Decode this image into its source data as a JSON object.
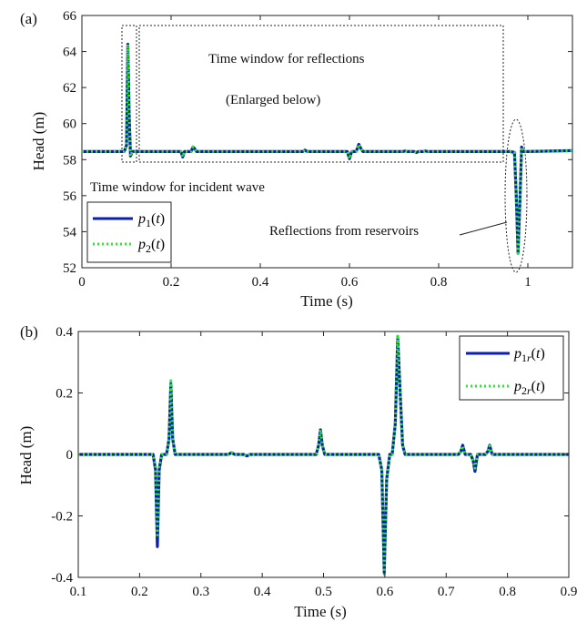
{
  "chart_data": [
    {
      "type": "line",
      "panel_label": "(a)",
      "xlabel": "Time (s)",
      "ylabel": "Head (m)",
      "xlim": [
        0,
        1.1
      ],
      "ylim": [
        52,
        66
      ],
      "xticks": [
        0,
        0.2,
        0.4,
        0.6,
        0.8,
        1
      ],
      "xtick_labels": [
        "0",
        "0.2",
        "0.4",
        "0.6",
        "0.8",
        "1"
      ],
      "yticks": [
        52,
        54,
        56,
        58,
        60,
        62,
        64,
        66
      ],
      "ytick_labels": [
        "52",
        "54",
        "56",
        "58",
        "60",
        "62",
        "64",
        "66"
      ],
      "grid": false,
      "legend_position": "bottom-left",
      "series": [
        {
          "name": "p1(t)",
          "color": "#0b1fb5",
          "style": "solid",
          "x": [
            0,
            0.095,
            0.1,
            0.103,
            0.106,
            0.109,
            0.113,
            0.2,
            0.222,
            0.226,
            0.23,
            0.245,
            0.249,
            0.253,
            0.257,
            0.35,
            0.495,
            0.5,
            0.505,
            0.595,
            0.6,
            0.605,
            0.615,
            0.621,
            0.626,
            0.63,
            0.72,
            0.725,
            0.73,
            0.745,
            0.75,
            0.755,
            0.765,
            0.77,
            0.775,
            0.96,
            0.97,
            0.974,
            0.978,
            0.982,
            0.986,
            0.99,
            1.0,
            1.1
          ],
          "y": [
            58.45,
            58.45,
            58.8,
            64.4,
            60.5,
            58.2,
            58.45,
            58.45,
            58.45,
            58.15,
            58.45,
            58.45,
            58.7,
            58.6,
            58.45,
            58.45,
            58.45,
            58.53,
            58.45,
            58.45,
            58.05,
            58.45,
            58.45,
            58.85,
            58.6,
            58.45,
            58.45,
            58.48,
            58.45,
            58.45,
            58.4,
            58.45,
            58.45,
            58.48,
            58.45,
            58.45,
            58.4,
            56.0,
            52.8,
            55.5,
            58.7,
            58.45,
            58.45,
            58.5
          ]
        },
        {
          "name": "p2(t)",
          "color": "#2ee82e",
          "style": "dotted",
          "x": [
            0,
            0.095,
            0.1,
            0.103,
            0.106,
            0.109,
            0.113,
            0.2,
            0.222,
            0.226,
            0.23,
            0.245,
            0.249,
            0.253,
            0.257,
            0.35,
            0.495,
            0.5,
            0.505,
            0.595,
            0.6,
            0.605,
            0.615,
            0.621,
            0.626,
            0.63,
            0.72,
            0.725,
            0.73,
            0.745,
            0.75,
            0.755,
            0.765,
            0.77,
            0.775,
            0.96,
            0.97,
            0.974,
            0.978,
            0.982,
            0.986,
            0.99,
            1.0,
            1.1
          ],
          "y": [
            58.45,
            58.45,
            58.8,
            64.4,
            60.5,
            58.2,
            58.45,
            58.45,
            58.45,
            58.15,
            58.45,
            58.45,
            58.7,
            58.6,
            58.45,
            58.45,
            58.45,
            58.53,
            58.45,
            58.45,
            58.05,
            58.45,
            58.45,
            58.85,
            58.6,
            58.45,
            58.45,
            58.48,
            58.45,
            58.45,
            58.4,
            58.45,
            58.45,
            58.48,
            58.45,
            58.45,
            58.4,
            56.0,
            52.8,
            55.5,
            58.7,
            58.45,
            58.45,
            58.5
          ]
        }
      ],
      "annotations": {
        "reflection_window": "Time window for reflections",
        "enlarged_note": "(Enlarged below)",
        "incident_window": "Time window for incident wave",
        "reservoir_note": "Reflections from reservoirs"
      }
    },
    {
      "type": "line",
      "panel_label": "(b)",
      "xlabel": "Time (s)",
      "ylabel": "Head (m)",
      "xlim": [
        0.1,
        0.9
      ],
      "ylim": [
        -0.4,
        0.4
      ],
      "xticks": [
        0.1,
        0.2,
        0.3,
        0.4,
        0.5,
        0.6,
        0.7,
        0.8,
        0.9
      ],
      "xtick_labels": [
        "0.1",
        "0.2",
        "0.3",
        "0.4",
        "0.5",
        "0.6",
        "0.7",
        "0.8",
        "0.9"
      ],
      "yticks": [
        -0.4,
        -0.2,
        0,
        0.2,
        0.4
      ],
      "ytick_labels": [
        "-0.4",
        "-0.2",
        "0",
        "0.2",
        "0.4"
      ],
      "grid": false,
      "legend_position": "top-right",
      "series": [
        {
          "name": "p1r(t)",
          "color": "#0b1fb5",
          "style": "solid",
          "x": [
            0.1,
            0.222,
            0.226,
            0.229,
            0.232,
            0.236,
            0.244,
            0.248,
            0.251,
            0.254,
            0.258,
            0.345,
            0.35,
            0.355,
            0.37,
            0.375,
            0.38,
            0.488,
            0.492,
            0.495,
            0.498,
            0.502,
            0.59,
            0.595,
            0.599,
            0.603,
            0.608,
            0.612,
            0.617,
            0.621,
            0.625,
            0.629,
            0.633,
            0.72,
            0.724,
            0.727,
            0.731,
            0.74,
            0.744,
            0.747,
            0.751,
            0.764,
            0.768,
            0.771,
            0.775,
            0.9
          ],
          "y": [
            0,
            0,
            -0.05,
            -0.3,
            -0.05,
            0,
            0,
            0.05,
            0.23,
            0.05,
            0,
            0,
            0.006,
            0,
            0,
            -0.005,
            0,
            0,
            0.03,
            0.08,
            0.03,
            0,
            0,
            -0.05,
            -0.385,
            -0.08,
            0,
            0,
            0.1,
            0.38,
            0.2,
            0.03,
            0,
            0,
            0.01,
            0.03,
            0,
            0,
            -0.02,
            -0.055,
            0,
            0,
            0.01,
            0.03,
            0,
            0
          ]
        },
        {
          "name": "p2r(t)",
          "color": "#2ee82e",
          "style": "dotted",
          "x": [
            0.1,
            0.222,
            0.226,
            0.229,
            0.232,
            0.236,
            0.244,
            0.248,
            0.251,
            0.254,
            0.258,
            0.345,
            0.35,
            0.355,
            0.37,
            0.375,
            0.38,
            0.488,
            0.492,
            0.495,
            0.498,
            0.502,
            0.59,
            0.595,
            0.599,
            0.603,
            0.608,
            0.612,
            0.617,
            0.621,
            0.625,
            0.629,
            0.633,
            0.72,
            0.724,
            0.727,
            0.731,
            0.74,
            0.744,
            0.747,
            0.751,
            0.764,
            0.768,
            0.771,
            0.775,
            0.9
          ],
          "y": [
            0,
            0,
            -0.04,
            -0.27,
            -0.04,
            0,
            0,
            0.05,
            0.24,
            0.05,
            0,
            0,
            0.006,
            0,
            0,
            -0.005,
            0,
            0,
            0.03,
            0.08,
            0.03,
            0,
            0,
            -0.05,
            -0.39,
            -0.08,
            0,
            0,
            0.1,
            0.39,
            0.2,
            0.03,
            0,
            0,
            0.01,
            0.028,
            0,
            0,
            -0.02,
            -0.045,
            0,
            0,
            0.01,
            0.028,
            0,
            0
          ]
        }
      ]
    }
  ]
}
